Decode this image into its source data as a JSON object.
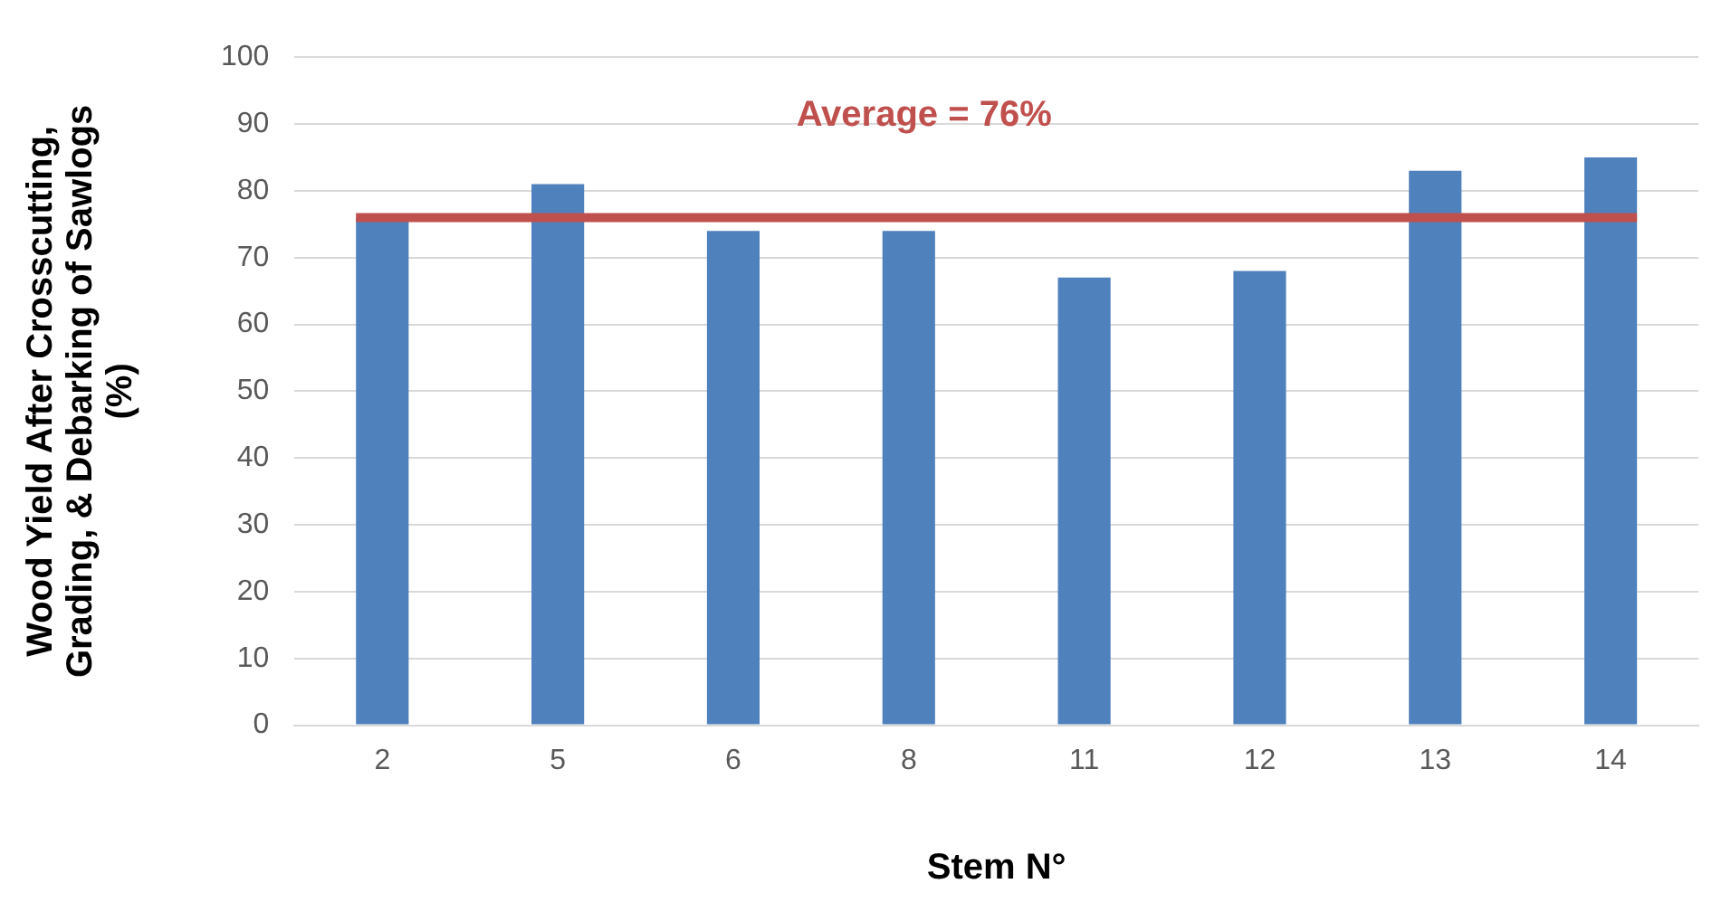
{
  "chart_data": {
    "type": "bar",
    "xlabel": "Stem N°",
    "ylabel": "Wood Yield After Crosscutting, Grading, & Debarking of Sawlogs (%)",
    "categories": [
      "2",
      "5",
      "6",
      "8",
      "11",
      "12",
      "13",
      "14"
    ],
    "values": [
      76,
      81,
      74,
      74,
      67,
      68,
      83,
      85
    ],
    "color": "#4f81bd",
    "ylim": [
      0,
      100
    ],
    "yticks": [
      0,
      10,
      20,
      30,
      40,
      50,
      60,
      70,
      80,
      90,
      100
    ],
    "grid": "y",
    "legend": false,
    "ref_lines": [
      {
        "axis": "y",
        "value": 76,
        "label": "Average = 76%",
        "color": "#c0504d"
      }
    ]
  }
}
